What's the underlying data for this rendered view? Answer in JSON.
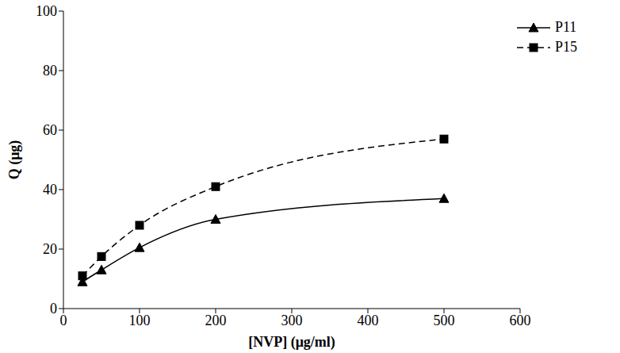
{
  "chart_data": {
    "type": "line",
    "x_label": "[NVP] (μg/ml)",
    "y_label": "Q (μg)",
    "x": [
      25,
      50,
      100,
      200,
      500
    ],
    "series": [
      {
        "name": "P11",
        "color": "#000000",
        "marker": "triangle",
        "line_style": "solid",
        "values": [
          9,
          13,
          20.5,
          30,
          37
        ]
      },
      {
        "name": "P15",
        "color": "#000000",
        "marker": "square",
        "line_style": "dashed",
        "values": [
          11,
          17.5,
          28,
          41,
          57
        ]
      }
    ],
    "xlim": [
      0,
      600
    ],
    "xticks": [
      0,
      100,
      200,
      300,
      400,
      500,
      600
    ],
    "ylim": [
      0,
      100
    ],
    "yticks": [
      0,
      20,
      40,
      60,
      80,
      100
    ],
    "grid": false,
    "legend": "upper right"
  }
}
